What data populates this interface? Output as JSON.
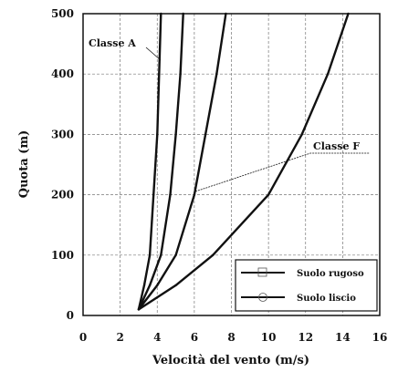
{
  "chart_data": {
    "type": "line",
    "xlabel": "Velocità del vento (m/s)",
    "ylabel": "Quota (m)",
    "xlim": [
      0,
      16
    ],
    "ylim": [
      0,
      500
    ],
    "xticks": [
      "0",
      "2",
      "4",
      "6",
      "8",
      "10",
      "12",
      "14",
      "16"
    ],
    "yticks": [
      "0",
      "100",
      "200",
      "300",
      "400",
      "500"
    ],
    "grid": true,
    "legend_position": "bottom-right",
    "legend": [
      {
        "label": "Suolo rugoso",
        "marker": "square"
      },
      {
        "label": "Suolo liscio",
        "marker": "circle"
      }
    ],
    "annotations": [
      {
        "text": "Classe A"
      },
      {
        "text": "Classe F"
      }
    ],
    "series": [
      {
        "x": [
          3.0,
          3.3,
          3.6,
          3.8,
          4.0,
          4.1,
          4.2
        ],
        "y": [
          10,
          50,
          100,
          200,
          300,
          400,
          500
        ]
      },
      {
        "x": [
          3.0,
          3.6,
          4.2,
          4.7,
          5.0,
          5.25,
          5.4
        ],
        "y": [
          10,
          50,
          100,
          200,
          300,
          400,
          500
        ]
      },
      {
        "x": [
          3.0,
          4.0,
          5.0,
          6.0,
          6.6,
          7.2,
          7.7
        ],
        "y": [
          10,
          50,
          100,
          200,
          300,
          400,
          500
        ]
      },
      {
        "x": [
          3.0,
          5.0,
          7.0,
          10.0,
          11.8,
          13.2,
          14.3
        ],
        "y": [
          10,
          50,
          100,
          200,
          300,
          400,
          500
        ]
      }
    ]
  }
}
